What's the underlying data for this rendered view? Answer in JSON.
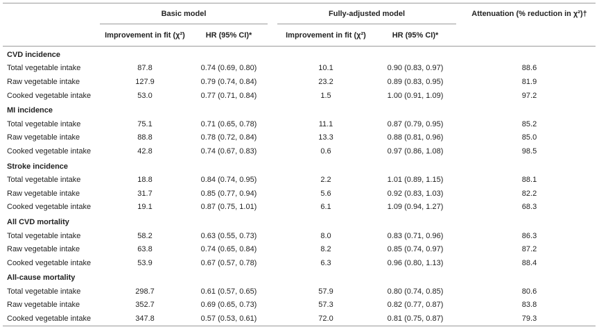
{
  "header": {
    "basic_model": "Basic model",
    "fully_adjusted_model": "Fully-adjusted model",
    "attenuation": "Attenuation (% reduction in χ²)†",
    "improvement_in_fit": "Improvement in fit (χ²)",
    "hr_ci": "HR (95% CI)*"
  },
  "sections": [
    {
      "title": "CVD incidence",
      "rows": [
        {
          "label": "Total vegetable intake",
          "basic_fit": "87.8",
          "basic_hr": "0.74 (0.69, 0.80)",
          "full_fit": "10.1",
          "full_hr": "0.90 (0.83, 0.97)",
          "atten": "88.6"
        },
        {
          "label": "Raw vegetable intake",
          "basic_fit": "127.9",
          "basic_hr": "0.79 (0.74, 0.84)",
          "full_fit": "23.2",
          "full_hr": "0.89 (0.83, 0.95)",
          "atten": "81.9"
        },
        {
          "label": "Cooked vegetable intake",
          "basic_fit": "53.0",
          "basic_hr": "0.77 (0.71, 0.84)",
          "full_fit": "1.5",
          "full_hr": "1.00 (0.91, 1.09)",
          "atten": "97.2"
        }
      ]
    },
    {
      "title": "MI incidence",
      "rows": [
        {
          "label": "Total vegetable intake",
          "basic_fit": "75.1",
          "basic_hr": "0.71 (0.65, 0.78)",
          "full_fit": "11.1",
          "full_hr": "0.87 (0.79, 0.95)",
          "atten": "85.2"
        },
        {
          "label": "Raw vegetable intake",
          "basic_fit": "88.8",
          "basic_hr": "0.78 (0.72, 0.84)",
          "full_fit": "13.3",
          "full_hr": "0.88 (0.81, 0.96)",
          "atten": "85.0"
        },
        {
          "label": "Cooked vegetable intake",
          "basic_fit": "42.8",
          "basic_hr": "0.74 (0.67, 0.83)",
          "full_fit": "0.6",
          "full_hr": "0.97 (0.86, 1.08)",
          "atten": "98.5"
        }
      ]
    },
    {
      "title": "Stroke incidence",
      "rows": [
        {
          "label": "Total vegetable intake",
          "basic_fit": "18.8",
          "basic_hr": "0.84 (0.74, 0.95)",
          "full_fit": "2.2",
          "full_hr": "1.01 (0.89, 1.15)",
          "atten": "88.1"
        },
        {
          "label": "Raw vegetable intake",
          "basic_fit": "31.7",
          "basic_hr": "0.85 (0.77, 0.94)",
          "full_fit": "5.6",
          "full_hr": "0.92 (0.83, 1.03)",
          "atten": "82.2"
        },
        {
          "label": "Cooked vegetable intake",
          "basic_fit": "19.1",
          "basic_hr": "0.87 (0.75, 1.01)",
          "full_fit": "6.1",
          "full_hr": "1.09 (0.94, 1.27)",
          "atten": "68.3"
        }
      ]
    },
    {
      "title": "All CVD mortality",
      "rows": [
        {
          "label": "Total vegetable intake",
          "basic_fit": "58.2",
          "basic_hr": "0.63 (0.55, 0.73)",
          "full_fit": "8.0",
          "full_hr": "0.83 (0.71, 0.96)",
          "atten": "86.3"
        },
        {
          "label": "Raw vegetable intake",
          "basic_fit": "63.8",
          "basic_hr": "0.74 (0.65, 0.84)",
          "full_fit": "8.2",
          "full_hr": "0.85 (0.74, 0.97)",
          "atten": "87.2"
        },
        {
          "label": "Cooked vegetable intake",
          "basic_fit": "53.9",
          "basic_hr": "0.67 (0.57, 0.78)",
          "full_fit": "6.3",
          "full_hr": "0.96 (0.80, 1.13)",
          "atten": "88.4"
        }
      ]
    },
    {
      "title": "All-cause mortality",
      "rows": [
        {
          "label": "Total vegetable intake",
          "basic_fit": "298.7",
          "basic_hr": "0.61 (0.57, 0.65)",
          "full_fit": "57.9",
          "full_hr": "0.80 (0.74, 0.85)",
          "atten": "80.6"
        },
        {
          "label": "Raw vegetable intake",
          "basic_fit": "352.7",
          "basic_hr": "0.69 (0.65, 0.73)",
          "full_fit": "57.3",
          "full_hr": "0.82 (0.77, 0.87)",
          "atten": "83.8"
        },
        {
          "label": "Cooked vegetable intake",
          "basic_fit": "347.8",
          "basic_hr": "0.57 (0.53, 0.61)",
          "full_fit": "72.0",
          "full_hr": "0.81 (0.75, 0.87)",
          "atten": "79.3"
        }
      ]
    }
  ]
}
